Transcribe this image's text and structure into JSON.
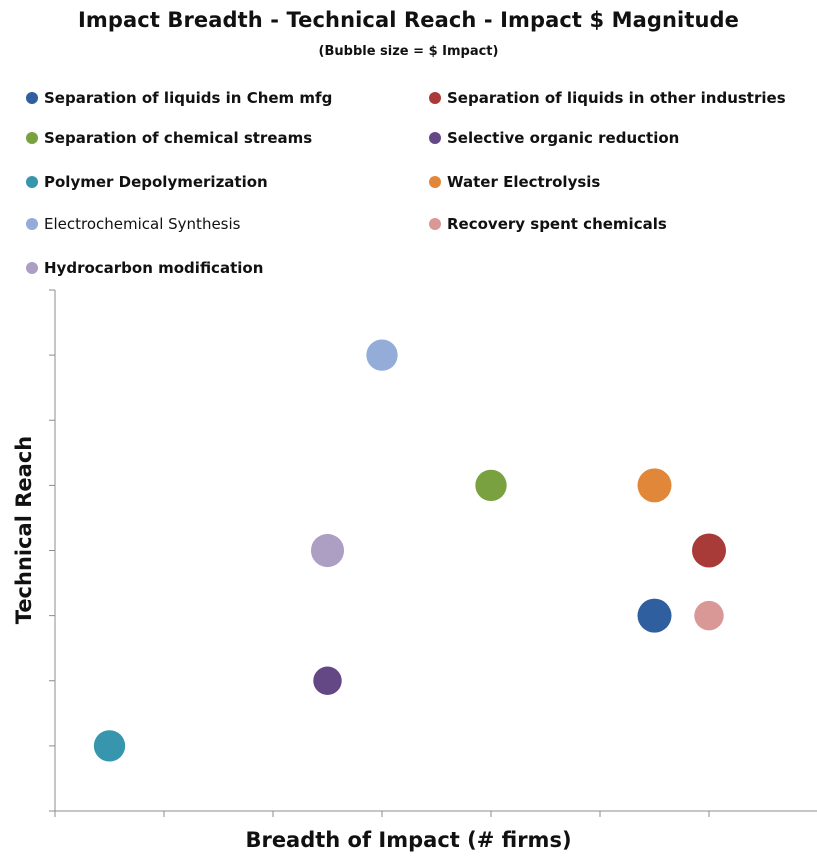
{
  "chart_data": {
    "type": "scatter",
    "title": "Impact Breadth - Technical Reach - Impact $ Magnitude",
    "subtitle": "(Bubble size = $ Impact)",
    "xlabel": "Breadth of Impact (# firms)",
    "ylabel": "Technical Reach",
    "xlim": [
      0,
      7
    ],
    "ylim": [
      0,
      8
    ],
    "x_ticks_count": 7,
    "y_ticks_count": 8,
    "legend": "top",
    "grid": false,
    "series": [
      {
        "name": "Separation of liquids in Chem mfg",
        "color": "#2f5f9f",
        "x": 5.5,
        "y": 3,
        "size": 1.0
      },
      {
        "name": "Separation of liquids in other industries",
        "color": "#a83a37",
        "x": 6,
        "y": 4,
        "size": 1.0
      },
      {
        "name": "Separation of chemical streams",
        "color": "#79a140",
        "x": 4,
        "y": 5,
        "size": 0.85
      },
      {
        "name": "Selective organic reduction",
        "color": "#644785",
        "x": 2.5,
        "y": 2,
        "size": 0.7
      },
      {
        "name": "Polymer Depolymerization",
        "color": "#3796ad",
        "x": 0.5,
        "y": 1,
        "size": 0.85
      },
      {
        "name": "Water Electrolysis",
        "color": "#e0873a",
        "x": 5.5,
        "y": 5,
        "size": 1.0
      },
      {
        "name": "Electrochemical Synthesis",
        "color": "#93acd8",
        "x": 3,
        "y": 7,
        "size": 0.85
      },
      {
        "name": "Recovery spent chemicals",
        "color": "#d99896",
        "x": 6,
        "y": 3,
        "size": 0.75
      },
      {
        "name": "Hydrocarbon modification",
        "color": "#ad9ec4",
        "x": 2.5,
        "y": 4,
        "size": 0.95
      }
    ]
  }
}
